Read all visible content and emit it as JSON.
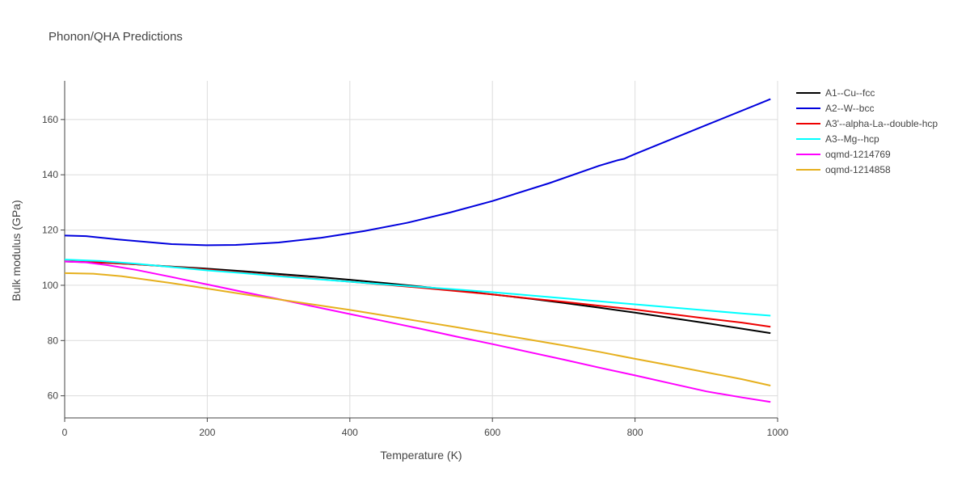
{
  "chart_data": {
    "type": "line",
    "title": "Phonon/QHA Predictions",
    "xlabel": "Temperature (K)",
    "ylabel": "Bulk modulus (GPa)",
    "xlim": [
      0,
      1000
    ],
    "ylim": [
      52,
      174
    ],
    "xticks": [
      0,
      200,
      400,
      600,
      800,
      1000
    ],
    "yticks": [
      60,
      80,
      100,
      120,
      140,
      160
    ],
    "grid": true,
    "legend_position": "right",
    "series": [
      {
        "name": "A1--Cu--fcc",
        "color": "#000000",
        "x": [
          0,
          50,
          100,
          150,
          200,
          250,
          300,
          350,
          400,
          450,
          500,
          550,
          600,
          650,
          700,
          750,
          800,
          850,
          900,
          950,
          990
        ],
        "y": [
          108.6,
          108.2,
          107.6,
          106.8,
          106,
          105.1,
          104.1,
          103.1,
          102,
          100.8,
          99.5,
          98.2,
          96.7,
          95.2,
          93.6,
          91.9,
          90.1,
          88.2,
          86.3,
          84.3,
          82.7
        ]
      },
      {
        "name": "A2--W--bcc",
        "color": "#0000dd",
        "x": [
          0,
          30,
          75,
          150,
          200,
          240,
          300,
          360,
          420,
          480,
          540,
          600,
          680,
          750,
          775,
          785,
          790,
          800,
          900,
          990
        ],
        "y": [
          118,
          117.8,
          116.6,
          114.9,
          114.5,
          114.6,
          115.5,
          117.2,
          119.6,
          122.6,
          126.3,
          130.5,
          137,
          143.3,
          145.2,
          145.8,
          146.4,
          147.5,
          158,
          167.4
        ]
      },
      {
        "name": "A3'--alpha-La--double-hcp",
        "color": "#ee0000",
        "x": [
          0,
          50,
          100,
          150,
          200,
          250,
          300,
          350,
          400,
          450,
          500,
          550,
          600,
          650,
          700,
          750,
          800,
          850,
          900,
          950,
          990
        ],
        "y": [
          108.7,
          108.3,
          107.6,
          106.7,
          105.7,
          104.6,
          103.5,
          102.4,
          101.3,
          100.2,
          99.1,
          97.9,
          96.7,
          95.3,
          94,
          92.6,
          91.2,
          89.6,
          88,
          86.5,
          85
        ]
      },
      {
        "name": "A3--Mg--hcp",
        "color": "#00ffff",
        "x": [
          0,
          50,
          100,
          150,
          200,
          250,
          300,
          350,
          400,
          450,
          500,
          550,
          600,
          650,
          700,
          750,
          800,
          850,
          900,
          950,
          990
        ],
        "y": [
          109.3,
          108.8,
          107.8,
          106.6,
          105.4,
          104.4,
          103.3,
          102.3,
          101.3,
          100.3,
          99.4,
          98.5,
          97.5,
          96.4,
          95.3,
          94.2,
          93.1,
          92,
          90.9,
          89.8,
          89
        ]
      },
      {
        "name": "oqmd-1214769",
        "color": "#ff00ff",
        "x": [
          0,
          30,
          60,
          100,
          150,
          200,
          250,
          300,
          350,
          400,
          450,
          500,
          550,
          600,
          650,
          700,
          750,
          800,
          850,
          900,
          950,
          990
        ],
        "y": [
          108.6,
          108.3,
          107.3,
          105.6,
          103,
          100.3,
          97.6,
          95,
          92.3,
          89.6,
          86.9,
          84.2,
          81.4,
          78.7,
          75.9,
          73.1,
          70.2,
          67.4,
          64.5,
          61.6,
          59.4,
          57.8
        ]
      },
      {
        "name": "oqmd-1214858",
        "color": "#e6b01e",
        "x": [
          0,
          40,
          80,
          150,
          200,
          250,
          300,
          350,
          400,
          450,
          500,
          550,
          600,
          650,
          700,
          750,
          800,
          850,
          900,
          950,
          990
        ],
        "y": [
          104.4,
          104.2,
          103.3,
          100.8,
          98.8,
          96.8,
          94.9,
          93,
          91.1,
          89,
          86.9,
          84.8,
          82.6,
          80.4,
          78.2,
          75.9,
          73.4,
          71,
          68.5,
          66,
          63.7
        ]
      }
    ]
  }
}
